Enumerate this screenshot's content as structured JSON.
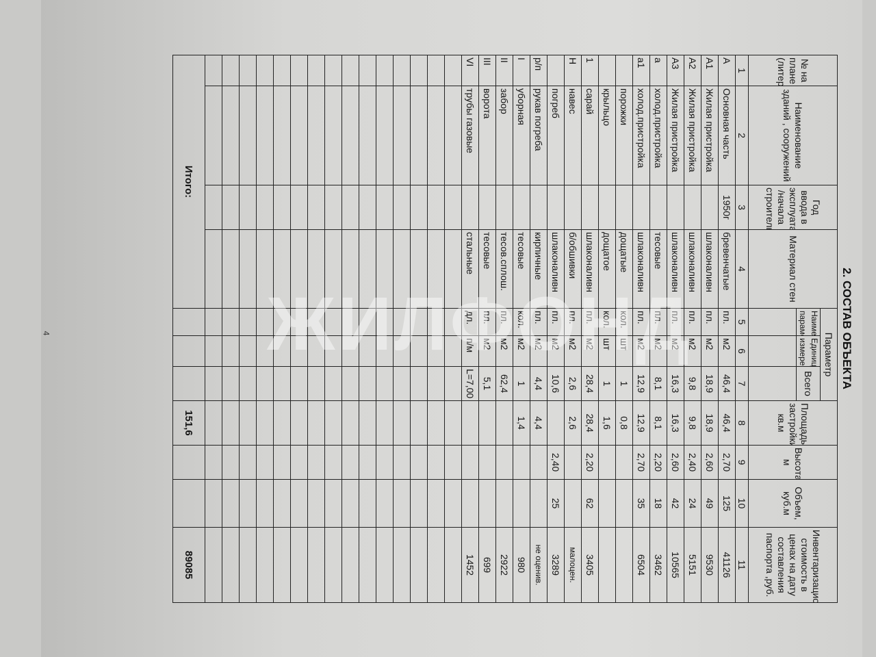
{
  "title": "2. СОСТАВ ОБЪЕКТА",
  "headers": {
    "c1": "№ на плане (литера)",
    "c2": "Наименование зданий , сооружений",
    "c3": "Год ввода в эксплуатацию /начала строительства",
    "c4": "Материал стен",
    "param": "Параметр",
    "c5": "Наименование параметра",
    "c6": "Единица измерения",
    "c7": "Всего",
    "c8": "Площадь застройки, кв.м",
    "c9": "Высота, м",
    "c10": "Объем, куб.м",
    "c11": "Инвентаризационная стоимость в ценах на дату составления паспорта ,руб."
  },
  "col_numbers": [
    "1",
    "2",
    "3",
    "4",
    "5",
    "6",
    "7",
    "8",
    "9",
    "10",
    "11"
  ],
  "rows": [
    [
      "А",
      "Основная часть",
      "1950г",
      "бревенчатые",
      "пл.",
      "м2",
      "46,4",
      "46,4",
      "2,70",
      "125",
      "41126"
    ],
    [
      "А1",
      "Жилая пристройка",
      "",
      "шлаконаливн",
      "пл.",
      "м2",
      "18,9",
      "18,9",
      "2,60",
      "49",
      "9530"
    ],
    [
      "А2",
      "Жилая пристройка",
      "",
      "шлаконаливн",
      "пл.",
      "м2",
      "9,8",
      "9,8",
      "2,40",
      "24",
      "5151"
    ],
    [
      "А3",
      "Жилая пристройка",
      "",
      "шлаконаливн",
      "пл.",
      "м2",
      "16,3",
      "16,3",
      "2,60",
      "42",
      "10565"
    ],
    [
      "а",
      "холод.пристройка",
      "",
      "тесовые",
      "пл.",
      "м2",
      "8,1",
      "8,1",
      "2,20",
      "18",
      "3462"
    ],
    [
      "а1",
      "холод.пристройка",
      "",
      "шлаконаливн",
      "пл.",
      "м2",
      "12,9",
      "12,9",
      "2,70",
      "35",
      "6504"
    ],
    [
      "",
      "порожки",
      "",
      "дощатые",
      "кол.",
      "шт",
      "1",
      "0,8",
      "",
      "",
      ""
    ],
    [
      "",
      "крыльцо",
      "",
      "дощатое",
      "кол.",
      "шт",
      "1",
      "1,6",
      "",
      "",
      ""
    ],
    [
      "1",
      "сарай",
      "",
      "шлаконаливн",
      "пл.",
      "м2",
      "28,4",
      "28,4",
      "2,20",
      "62",
      "3405"
    ],
    [
      "Н",
      "навес",
      "",
      "б/обшивки",
      "пл.",
      "м2",
      "2,6",
      "2,6",
      "",
      "",
      "малоцен."
    ],
    [
      "",
      "погреб",
      "",
      "шлаконаливн",
      "пл.",
      "м2",
      "10,6",
      "",
      "2,40",
      "25",
      "3289"
    ],
    [
      "р/п",
      "рукав погреба",
      "",
      "кирпичные",
      "пл.",
      "м2",
      "4,4",
      "4,4",
      "",
      "",
      "не оценив."
    ],
    [
      "I",
      "уборная",
      "",
      "тесовые",
      "кол.",
      "м2",
      "1",
      "1,4",
      "",
      "",
      "980"
    ],
    [
      "II",
      "забор",
      "",
      "тесов.сплош.",
      "пл.",
      "м2",
      "62,4",
      "",
      "",
      "",
      "2922"
    ],
    [
      "III",
      "ворота",
      "",
      "тесовые",
      "пл.",
      "м2",
      "5,1",
      "",
      "",
      "",
      "699"
    ],
    [
      "VI",
      "трубы газовые",
      "",
      "стальные",
      "дл.",
      "п/м",
      "L=7,00",
      "",
      "",
      "",
      "1452"
    ]
  ],
  "total": {
    "label": "Итого:",
    "area": "151,6",
    "cost": "89085"
  },
  "watermark": "ЖИЛФОНД",
  "page_number": "4"
}
